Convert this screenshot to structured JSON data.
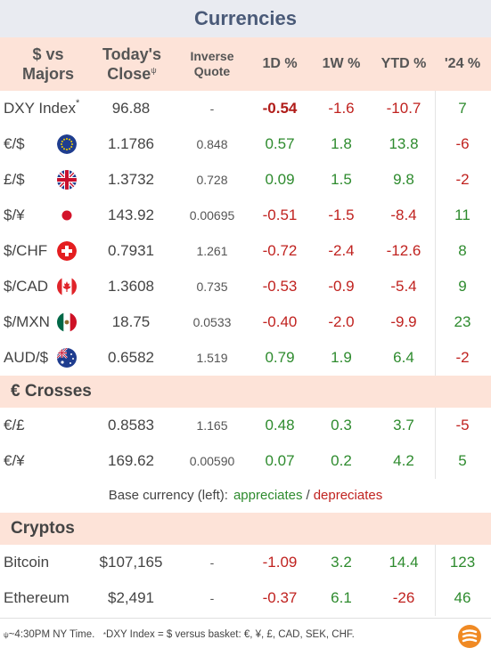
{
  "title": "Currencies",
  "header": {
    "col_pair_line1": "$ vs",
    "col_pair_line2": "Majors",
    "col_close_line1": "Today's",
    "col_close_line2": "Close",
    "close_mark": "ψ",
    "col_inverse_line1": "Inverse",
    "col_inverse_line2": "Quote",
    "col_1d": "1D %",
    "col_1w": "1W %",
    "col_ytd": "YTD %",
    "col_24": "'24 %"
  },
  "majors": [
    {
      "label": "DXY Index",
      "mark": "*",
      "flag": "none",
      "close": "96.88",
      "inverse": "-",
      "d1": "-0.54",
      "w1": "-1.6",
      "ytd": "-10.7",
      "y24": "7"
    },
    {
      "label": "€/$",
      "flag": "eu-flag-icon",
      "close": "1.1786",
      "inverse": "0.848",
      "d1": "0.57",
      "w1": "1.8",
      "ytd": "13.8",
      "y24": "-6"
    },
    {
      "label": "£/$",
      "flag": "uk-flag-icon",
      "close": "1.3732",
      "inverse": "0.728",
      "d1": "0.09",
      "w1": "1.5",
      "ytd": "9.8",
      "y24": "-2"
    },
    {
      "label": "$/¥",
      "flag": "japan-flag-icon",
      "close": "143.92",
      "inverse": "0.00695",
      "d1": "-0.51",
      "w1": "-1.5",
      "ytd": "-8.4",
      "y24": "11"
    },
    {
      "label": "$/CHF",
      "flag": "swiss-flag-icon",
      "close": "0.7931",
      "inverse": "1.261",
      "d1": "-0.72",
      "w1": "-2.4",
      "ytd": "-12.6",
      "y24": "8"
    },
    {
      "label": "$/CAD",
      "flag": "canada-flag-icon",
      "close": "1.3608",
      "inverse": "0.735",
      "d1": "-0.53",
      "w1": "-0.9",
      "ytd": "-5.4",
      "y24": "9"
    },
    {
      "label": "$/MXN",
      "flag": "mexico-flag-icon",
      "close": "18.75",
      "inverse": "0.0533",
      "d1": "-0.40",
      "w1": "-2.0",
      "ytd": "-9.9",
      "y24": "23"
    },
    {
      "label": "AUD/$",
      "flag": "australia-flag-icon",
      "close": "0.6582",
      "inverse": "1.519",
      "d1": "0.79",
      "w1": "1.9",
      "ytd": "6.4",
      "y24": "-2"
    }
  ],
  "crosses_title": "€ Crosses",
  "crosses": [
    {
      "label": "€/£",
      "close": "0.8583",
      "inverse": "1.165",
      "d1": "0.48",
      "w1": "0.3",
      "ytd": "3.7",
      "y24": "-5"
    },
    {
      "label": "€/¥",
      "close": "169.62",
      "inverse": "0.00590",
      "d1": "0.07",
      "w1": "0.2",
      "ytd": "4.2",
      "y24": "5"
    }
  ],
  "legend": {
    "prefix": "Base currency (left):",
    "appreciates": "appreciates",
    "slash": "/",
    "depreciates": "depreciates"
  },
  "cryptos_title": "Cryptos",
  "cryptos": [
    {
      "label": "Bitcoin",
      "close": "$107,165",
      "inverse": "-",
      "d1": "-1.09",
      "w1": "3.2",
      "ytd": "14.4",
      "y24": "123"
    },
    {
      "label": "Ethereum",
      "close": "$2,491",
      "inverse": "-",
      "d1": "-0.37",
      "w1": "6.1",
      "ytd": "-26",
      "y24": "46"
    }
  ],
  "footer": {
    "mark1": "ψ",
    "note1": " ~4:30PM NY Time.",
    "mark2": "*",
    "note2": "DXY Index = $ versus basket: €, ¥, £, CAD, SEK, CHF."
  },
  "logo_icon": "brand-logo-icon",
  "colors": {
    "positive": "#2e8b2e",
    "negative": "#c0221f",
    "header_bg": "#fde3d8",
    "title_bg": "#e9ebf1"
  }
}
